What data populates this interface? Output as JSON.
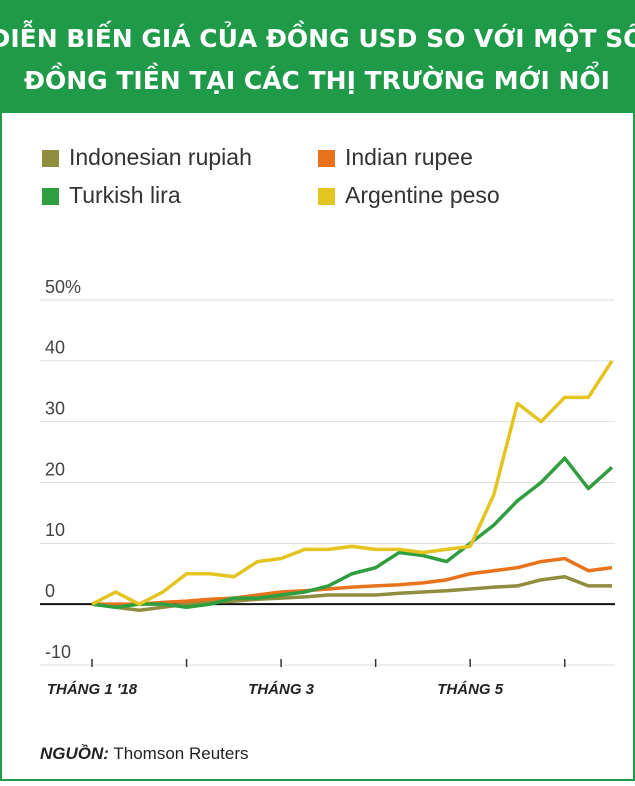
{
  "chart_data": {
    "type": "line",
    "title": [
      "DIỄN BIẾN GIÁ CỦA ĐỒNG USD SO VỚI MỘT SỐ",
      "ĐỒNG TIỀN TẠI CÁC THỊ TRƯỜNG MỚI NỔI"
    ],
    "categories": [
      "THÁNG 1 '18",
      null,
      null,
      null,
      null,
      null,
      null,
      null,
      "THÁNG 3",
      null,
      null,
      null,
      null,
      null,
      null,
      null,
      "THÁNG 5",
      null,
      null,
      null,
      null,
      null,
      null
    ],
    "series": [
      {
        "name": "Indonesian rupiah",
        "color": "#8f8d3e",
        "values": [
          0,
          -0.5,
          -1,
          -0.5,
          0,
          0.3,
          0.5,
          0.8,
          1,
          1.2,
          1.5,
          1.5,
          1.5,
          1.8,
          2,
          2.2,
          2.5,
          2.8,
          3,
          4,
          4.5,
          3,
          3
        ]
      },
      {
        "name": "Indian rupee",
        "color": "#e8731c",
        "values": [
          0,
          0,
          0,
          0.3,
          0.5,
          0.8,
          1,
          1.5,
          2,
          2.2,
          2.5,
          2.8,
          3,
          3.2,
          3.5,
          4,
          5,
          5.5,
          6,
          7,
          7.5,
          5.5,
          6
        ]
      },
      {
        "name": "Turkish lira",
        "color": "#2f9e3f",
        "values": [
          0,
          -0.5,
          0,
          0,
          -0.5,
          0,
          1,
          1,
          1.5,
          2,
          3,
          5,
          6,
          8.5,
          8,
          7,
          10,
          13,
          17,
          20,
          24,
          19,
          22.5
        ]
      },
      {
        "name": "Argentine peso",
        "color": "#e3c421",
        "values": [
          0,
          2,
          0,
          2,
          5,
          5,
          4.5,
          7,
          7.5,
          9,
          9,
          9.5,
          9,
          9,
          8.5,
          9,
          9.5,
          18,
          33,
          30,
          34,
          34,
          40
        ]
      }
    ],
    "ylim": [
      -10,
      50
    ],
    "yticks": [
      -10,
      0,
      10,
      20,
      30,
      40,
      {
        "value": 50,
        "label": "50%"
      }
    ],
    "grid": true,
    "source_label": "NGUỒN:",
    "source": "Thomson Reuters"
  }
}
